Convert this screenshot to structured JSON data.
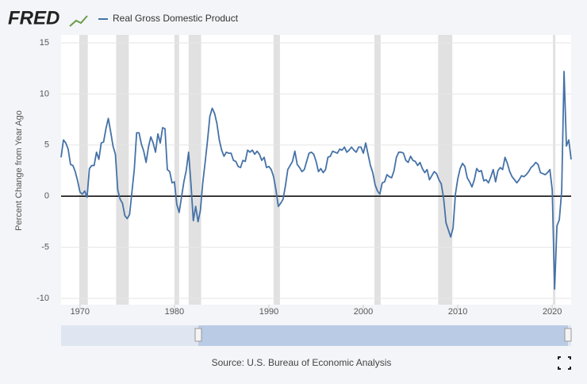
{
  "logo": "FRED",
  "source": "Source: U.S. Bureau of Economic Analysis",
  "chart_data": {
    "type": "line",
    "y_label": "Percent Change from Year Ago",
    "ylim": [
      -10,
      15
    ],
    "yticks": [
      -10,
      -5,
      0,
      5,
      10,
      15
    ],
    "xlim": [
      1968,
      2022
    ],
    "xticks": [
      1970,
      1980,
      1990,
      2000,
      2010,
      2020
    ],
    "grid": true,
    "baseline": 0,
    "recessions": [
      [
        1969.92,
        1970.83
      ],
      [
        1973.83,
        1975.17
      ],
      [
        1980.0,
        1980.5
      ],
      [
        1981.5,
        1982.83
      ],
      [
        1990.5,
        1991.17
      ],
      [
        2001.17,
        2001.83
      ],
      [
        2007.92,
        2009.42
      ],
      [
        2020.08,
        2020.33
      ]
    ],
    "recession_color": "#e1e1e1",
    "x": [
      1968,
      1968.25,
      1968.5,
      1968.75,
      1969,
      1969.25,
      1969.5,
      1969.75,
      1970,
      1970.25,
      1970.5,
      1970.75,
      1971,
      1971.25,
      1971.5,
      1971.75,
      1972,
      1972.25,
      1972.5,
      1972.75,
      1973,
      1973.25,
      1973.5,
      1973.75,
      1974,
      1974.25,
      1974.5,
      1974.75,
      1975,
      1975.25,
      1975.5,
      1975.75,
      1976,
      1976.25,
      1976.5,
      1976.75,
      1977,
      1977.25,
      1977.5,
      1977.75,
      1978,
      1978.25,
      1978.5,
      1978.75,
      1979,
      1979.25,
      1979.5,
      1979.75,
      1980,
      1980.25,
      1980.5,
      1980.75,
      1981,
      1981.25,
      1981.5,
      1981.75,
      1982,
      1982.25,
      1982.5,
      1982.75,
      1983,
      1983.25,
      1983.5,
      1983.75,
      1984,
      1984.25,
      1984.5,
      1984.75,
      1985,
      1985.25,
      1985.5,
      1985.75,
      1986,
      1986.25,
      1986.5,
      1986.75,
      1987,
      1987.25,
      1987.5,
      1987.75,
      1988,
      1988.25,
      1988.5,
      1988.75,
      1989,
      1989.25,
      1989.5,
      1989.75,
      1990,
      1990.25,
      1990.5,
      1990.75,
      1991,
      1991.25,
      1991.5,
      1991.75,
      1992,
      1992.25,
      1992.5,
      1992.75,
      1993,
      1993.25,
      1993.5,
      1993.75,
      1994,
      1994.25,
      1994.5,
      1994.75,
      1995,
      1995.25,
      1995.5,
      1995.75,
      1996,
      1996.25,
      1996.5,
      1996.75,
      1997,
      1997.25,
      1997.5,
      1997.75,
      1998,
      1998.25,
      1998.5,
      1998.75,
      1999,
      1999.25,
      1999.5,
      1999.75,
      2000,
      2000.25,
      2000.5,
      2000.75,
      2001,
      2001.25,
      2001.5,
      2001.75,
      2002,
      2002.25,
      2002.5,
      2002.75,
      2003,
      2003.25,
      2003.5,
      2003.75,
      2004,
      2004.25,
      2004.5,
      2004.75,
      2005,
      2005.25,
      2005.5,
      2005.75,
      2006,
      2006.25,
      2006.5,
      2006.75,
      2007,
      2007.25,
      2007.5,
      2007.75,
      2008,
      2008.25,
      2008.5,
      2008.75,
      2009,
      2009.25,
      2009.5,
      2009.75,
      2010,
      2010.25,
      2010.5,
      2010.75,
      2011,
      2011.25,
      2011.5,
      2011.75,
      2012,
      2012.25,
      2012.5,
      2012.75,
      2013,
      2013.25,
      2013.5,
      2013.75,
      2014,
      2014.25,
      2014.5,
      2014.75,
      2015,
      2015.25,
      2015.5,
      2015.75,
      2016,
      2016.25,
      2016.5,
      2016.75,
      2017,
      2017.25,
      2017.5,
      2017.75,
      2018,
      2018.25,
      2018.5,
      2018.75,
      2019,
      2019.25,
      2019.5,
      2019.75,
      2020,
      2020.25,
      2020.5,
      2020.75,
      2021,
      2021.25,
      2021.5,
      2021.75,
      2022
    ],
    "series": [
      {
        "name": "Real Gross Domestic Product",
        "color": "#4572a7",
        "values": [
          3.8,
          5.5,
          5.2,
          4.6,
          3.1,
          3.0,
          2.4,
          1.5,
          0.4,
          0.2,
          0.5,
          -0.1,
          2.7,
          3.0,
          3.0,
          4.3,
          3.6,
          5.2,
          5.3,
          6.6,
          7.6,
          6.3,
          4.9,
          4.1,
          0.6,
          -0.3,
          -0.7,
          -1.9,
          -2.2,
          -1.8,
          0.4,
          2.6,
          6.2,
          6.2,
          5.1,
          4.4,
          3.3,
          4.8,
          5.8,
          5.2,
          4.3,
          6.1,
          5.2,
          6.7,
          6.6,
          2.6,
          2.4,
          1.3,
          1.4,
          -0.8,
          -1.6,
          -0.1,
          1.4,
          2.5,
          4.3,
          1.2,
          -2.4,
          -1.0,
          -2.5,
          -1.4,
          1.3,
          3.3,
          5.4,
          7.8,
          8.6,
          8.1,
          7.1,
          5.5,
          4.5,
          3.9,
          4.3,
          4.2,
          4.2,
          3.5,
          3.4,
          2.9,
          2.8,
          3.5,
          3.4,
          4.5,
          4.3,
          4.5,
          4.1,
          4.4,
          4.1,
          3.5,
          3.8,
          2.8,
          2.9,
          2.6,
          1.9,
          0.6,
          -1.0,
          -0.7,
          -0.3,
          1.0,
          2.6,
          3.0,
          3.4,
          4.4,
          3.1,
          2.8,
          2.4,
          2.6,
          3.4,
          4.2,
          4.3,
          4.1,
          3.4,
          2.4,
          2.7,
          2.3,
          2.6,
          3.8,
          3.9,
          4.4,
          4.3,
          4.2,
          4.6,
          4.5,
          4.8,
          4.3,
          4.5,
          4.8,
          4.5,
          4.3,
          4.8,
          4.8,
          4.2,
          5.2,
          4.1,
          3.0,
          2.3,
          1.1,
          0.5,
          0.2,
          1.3,
          1.4,
          2.1,
          1.9,
          1.8,
          2.5,
          3.8,
          4.3,
          4.3,
          4.2,
          3.5,
          3.3,
          3.9,
          3.5,
          3.4,
          3.0,
          3.3,
          2.7,
          2.3,
          2.6,
          1.6,
          2.0,
          2.4,
          2.2,
          1.6,
          1.2,
          -0.2,
          -2.6,
          -3.3,
          -4.0,
          -3.1,
          0.2,
          1.7,
          2.7,
          3.2,
          2.9,
          1.8,
          1.4,
          0.9,
          1.6,
          2.7,
          2.4,
          2.5,
          1.5,
          1.6,
          1.3,
          1.9,
          2.6,
          1.4,
          2.5,
          2.8,
          2.6,
          3.8,
          3.2,
          2.4,
          1.9,
          1.6,
          1.3,
          1.6,
          2.0,
          1.9,
          2.1,
          2.4,
          2.8,
          3.0,
          3.3,
          3.1,
          2.3,
          2.2,
          2.1,
          2.3,
          2.6,
          0.6,
          -9.1,
          -2.9,
          -2.3,
          0.5,
          12.2,
          4.9,
          5.5,
          3.6
        ]
      }
    ]
  }
}
